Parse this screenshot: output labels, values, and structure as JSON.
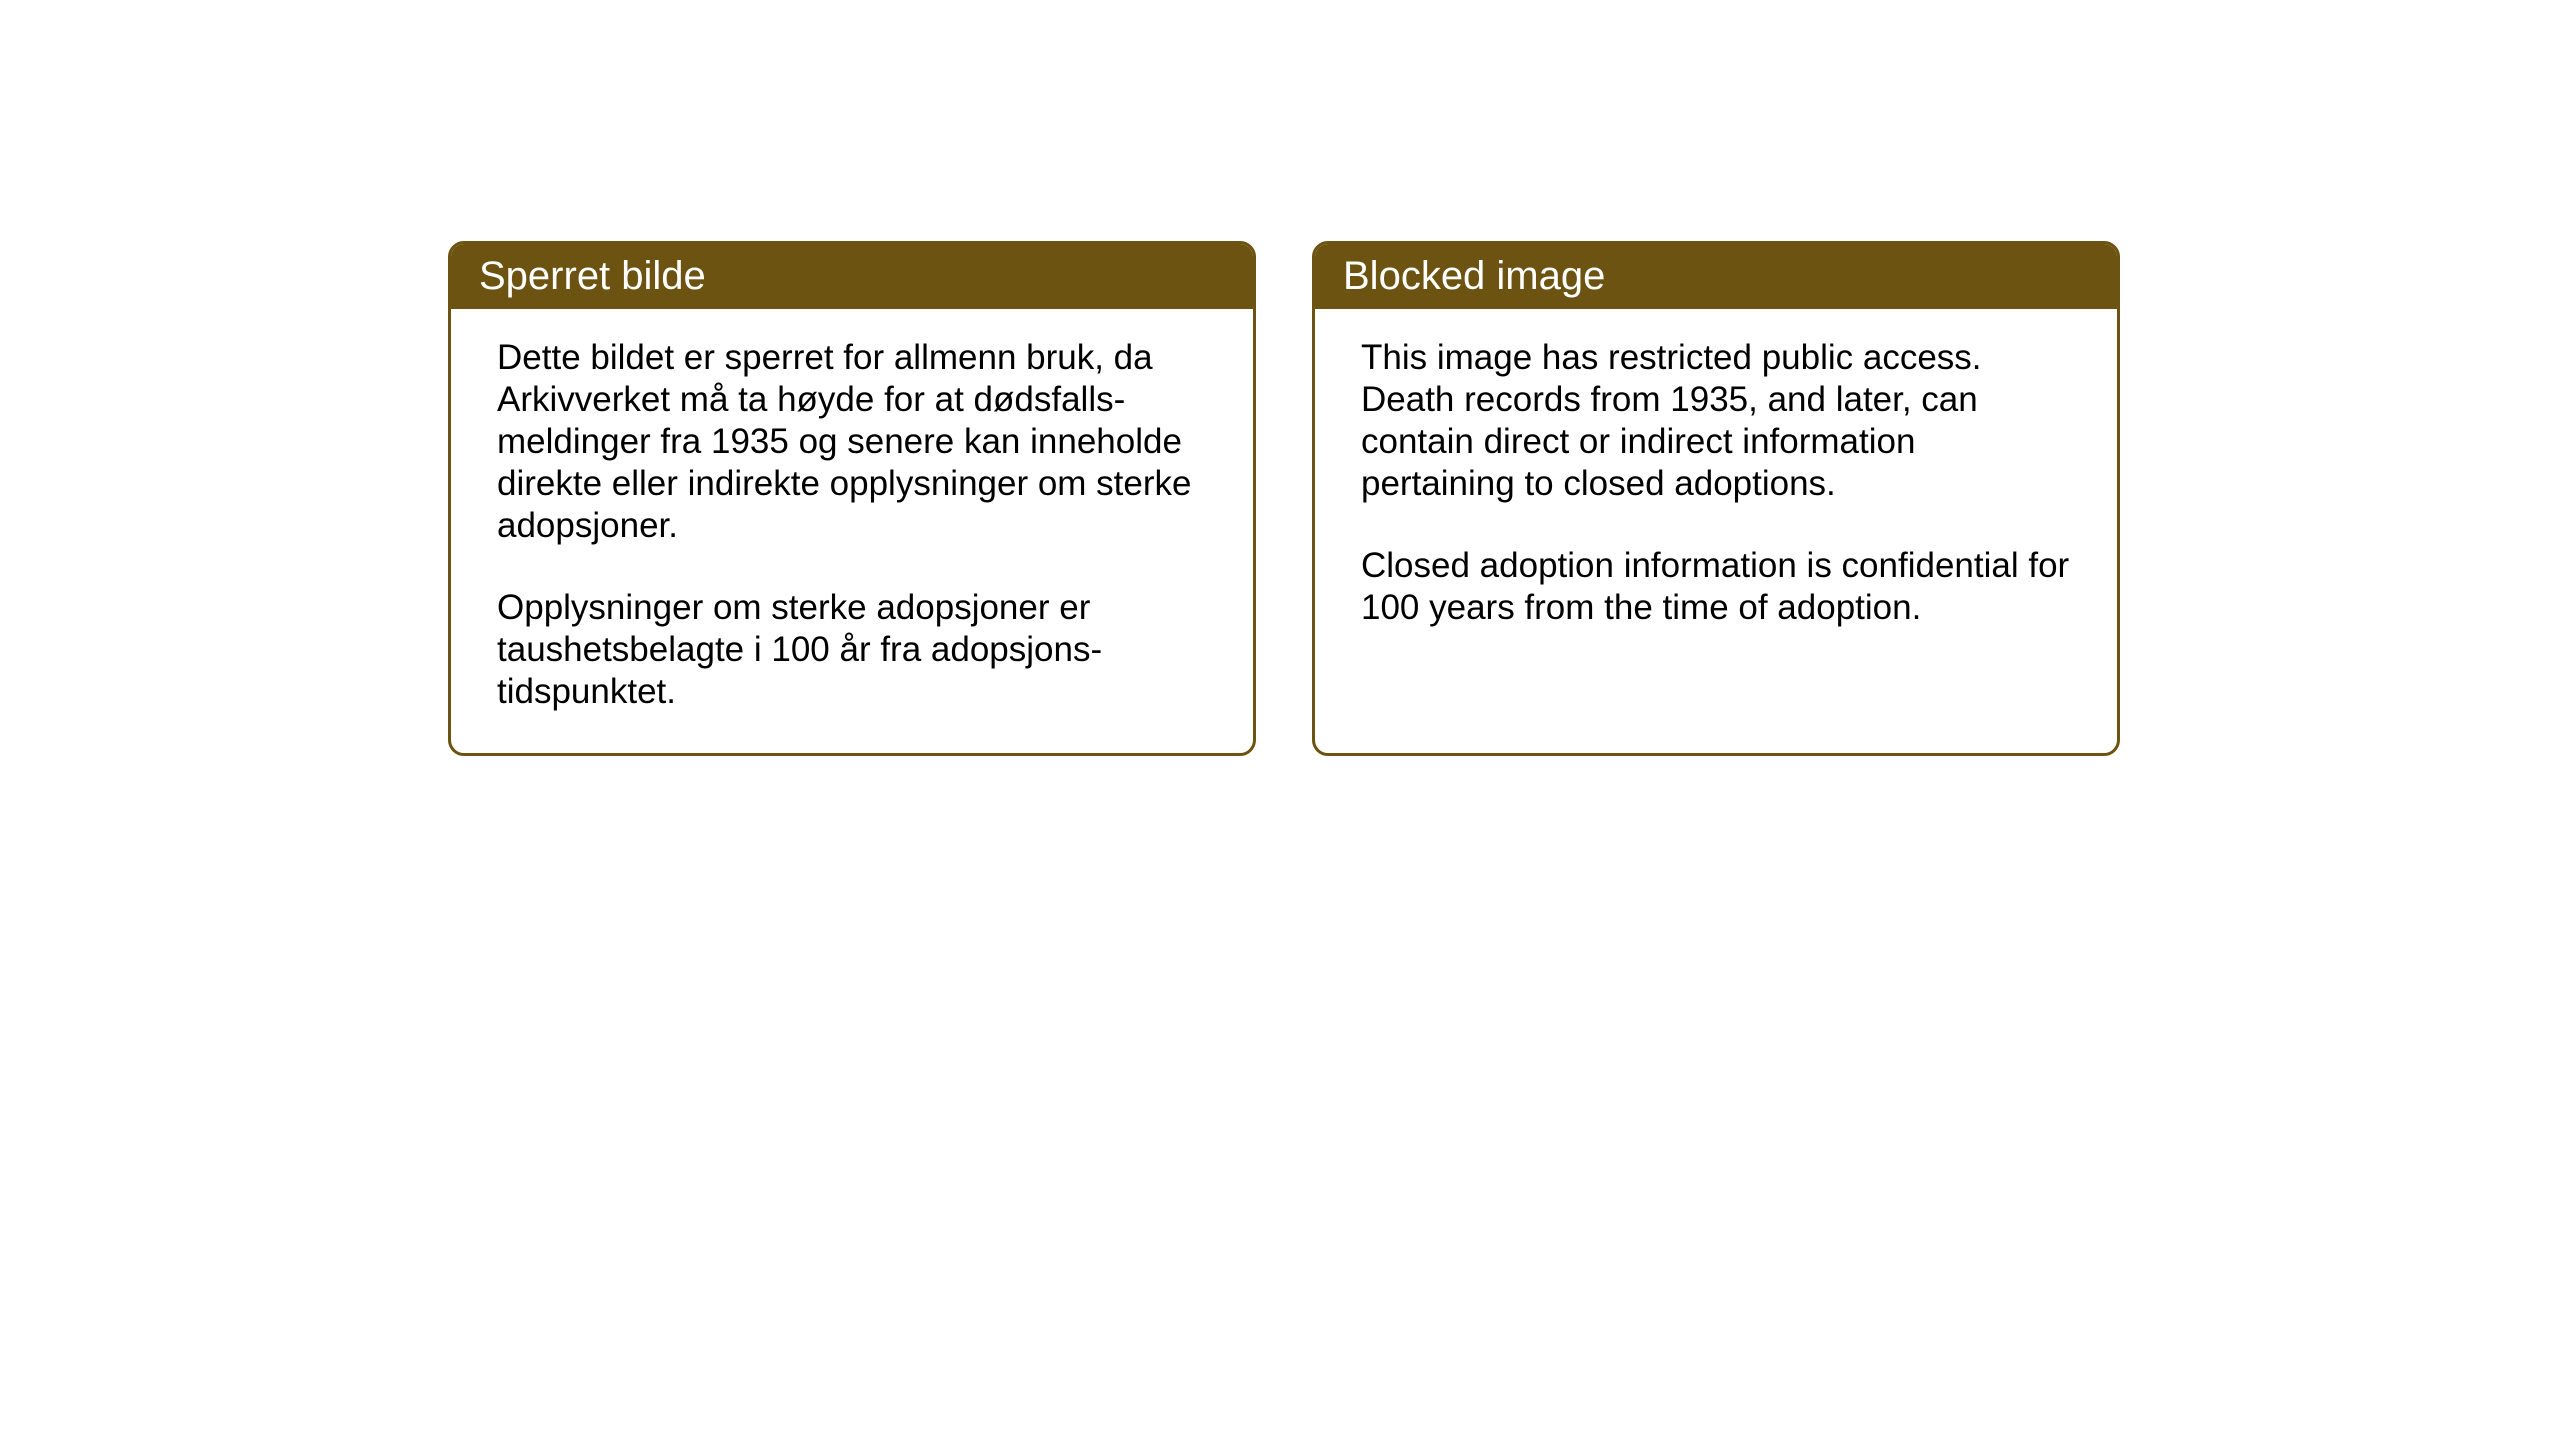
{
  "cards": {
    "left": {
      "title": "Sperret bilde",
      "para1": "Dette bildet er sperret for allmenn bruk, da Arkivverket må ta høyde for at dødsfalls-meldinger fra 1935 og senere kan inneholde direkte eller indirekte opplysninger om sterke adopsjoner.",
      "para2": "Opplysninger om sterke adopsjoner er taushetsbelagte i 100 år fra adopsjons-tidspunktet."
    },
    "right": {
      "title": "Blocked image",
      "para1": "This image has restricted public access. Death records from 1935, and later, can contain direct or indirect information pertaining to closed adoptions.",
      "para2": "Closed adoption information is confidential for 100 years from the time of adoption."
    }
  },
  "styling": {
    "header_bg_color": "#6d5311",
    "header_text_color": "#ffffff",
    "border_color": "#6d5311",
    "body_text_color": "#000000",
    "background_color": "#ffffff",
    "title_fontsize": 40,
    "body_fontsize": 35,
    "border_radius": 16,
    "border_width": 3
  }
}
